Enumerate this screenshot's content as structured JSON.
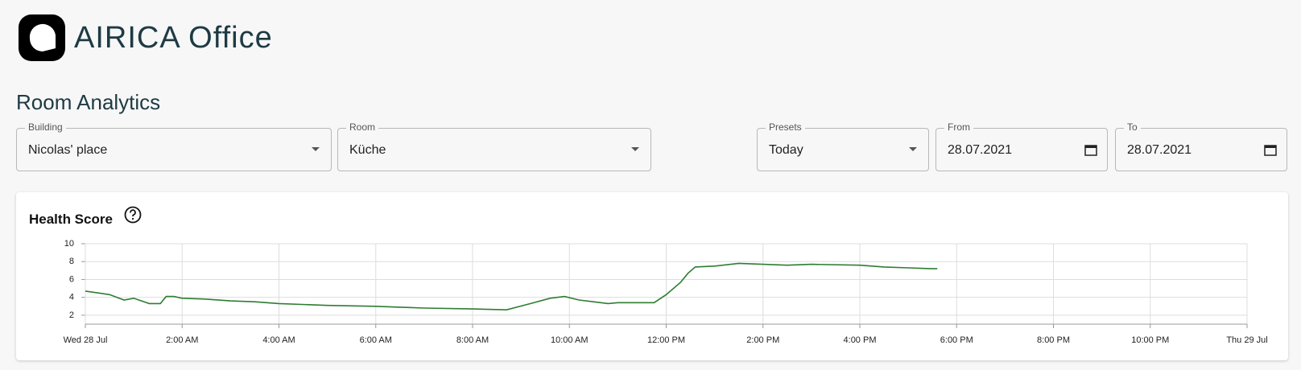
{
  "header": {
    "title": "AIRICA Office"
  },
  "section_title": "Room Analytics",
  "filters": [
    {
      "label": "Building",
      "value": "Nicolas' place"
    },
    {
      "label": "Room",
      "value": "Küche"
    },
    {
      "label": "Presets",
      "value": "Today"
    },
    {
      "label": "From",
      "value": "28.07.2021"
    },
    {
      "label": "To",
      "value": "28.07.2021"
    }
  ],
  "chart_data": {
    "type": "line",
    "title": "Health Score",
    "color": "#2e7d32",
    "grid": true,
    "x": [
      0,
      0.5,
      0.8,
      1.0,
      1.32,
      1.55,
      1.67,
      1.83,
      2.0,
      2.5,
      3.0,
      3.5,
      4.0,
      5.0,
      6.0,
      6.5,
      7.0,
      8.0,
      8.7,
      9.2,
      9.6,
      9.9,
      10.2,
      10.5,
      10.8,
      11.0,
      11.5,
      11.75,
      12.0,
      12.3,
      12.45,
      12.6,
      13.0,
      13.5,
      14.0,
      14.5,
      15.0,
      16.0,
      16.5,
      17.0,
      17.5,
      17.6
    ],
    "values": [
      4.7,
      4.3,
      3.7,
      3.9,
      3.3,
      3.3,
      4.1,
      4.1,
      3.9,
      3.8,
      3.6,
      3.5,
      3.3,
      3.1,
      3.0,
      2.9,
      2.8,
      2.7,
      2.6,
      3.3,
      3.9,
      4.1,
      3.7,
      3.5,
      3.3,
      3.4,
      3.4,
      3.4,
      4.3,
      5.7,
      6.7,
      7.4,
      7.5,
      7.8,
      7.7,
      7.6,
      7.7,
      7.6,
      7.4,
      7.3,
      7.2,
      7.2
    ],
    "xlim": [
      0,
      24
    ],
    "xticks": [
      {
        "value": 0,
        "label": "Wed 28 Jul"
      },
      {
        "value": 2,
        "label": "2:00 AM"
      },
      {
        "value": 4,
        "label": "4:00 AM"
      },
      {
        "value": 6,
        "label": "6:00 AM"
      },
      {
        "value": 8,
        "label": "8:00 AM"
      },
      {
        "value": 10,
        "label": "10:00 AM"
      },
      {
        "value": 12,
        "label": "12:00 PM"
      },
      {
        "value": 14,
        "label": "2:00 PM"
      },
      {
        "value": 16,
        "label": "4:00 PM"
      },
      {
        "value": 18,
        "label": "6:00 PM"
      },
      {
        "value": 20,
        "label": "8:00 PM"
      },
      {
        "value": 22,
        "label": "10:00 PM"
      },
      {
        "value": 24,
        "label": "Thu 29 Jul"
      }
    ],
    "ylim": [
      1,
      10
    ],
    "yticks": [
      2,
      4,
      6,
      8,
      10
    ]
  }
}
